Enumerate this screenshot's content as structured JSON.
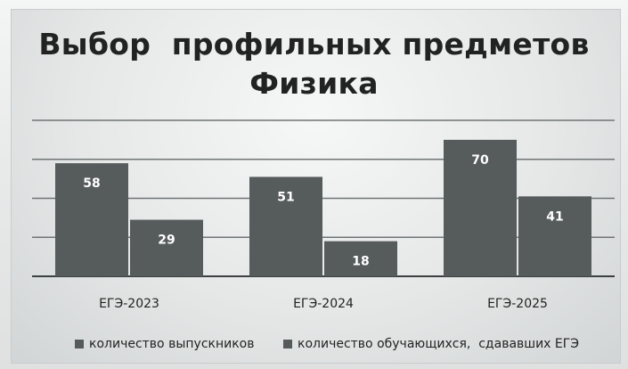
{
  "chart_data": {
    "type": "bar",
    "title_line1": "Выбор  профильных предметов",
    "title_line2": "Физика",
    "categories": [
      "ЕГЭ-2023",
      "ЕГЭ-2024",
      "ЕГЭ-2025"
    ],
    "series": [
      {
        "name": "количество выпускников",
        "values": [
          58,
          51,
          70
        ]
      },
      {
        "name": "количество обучающихся,  сдававших ЕГЭ",
        "values": [
          29,
          18,
          41
        ]
      }
    ],
    "ylim": [
      0,
      80
    ],
    "grid": true,
    "legend_position": "bottom",
    "bar_color": "#565b5c",
    "label_color": "#ffffff"
  }
}
